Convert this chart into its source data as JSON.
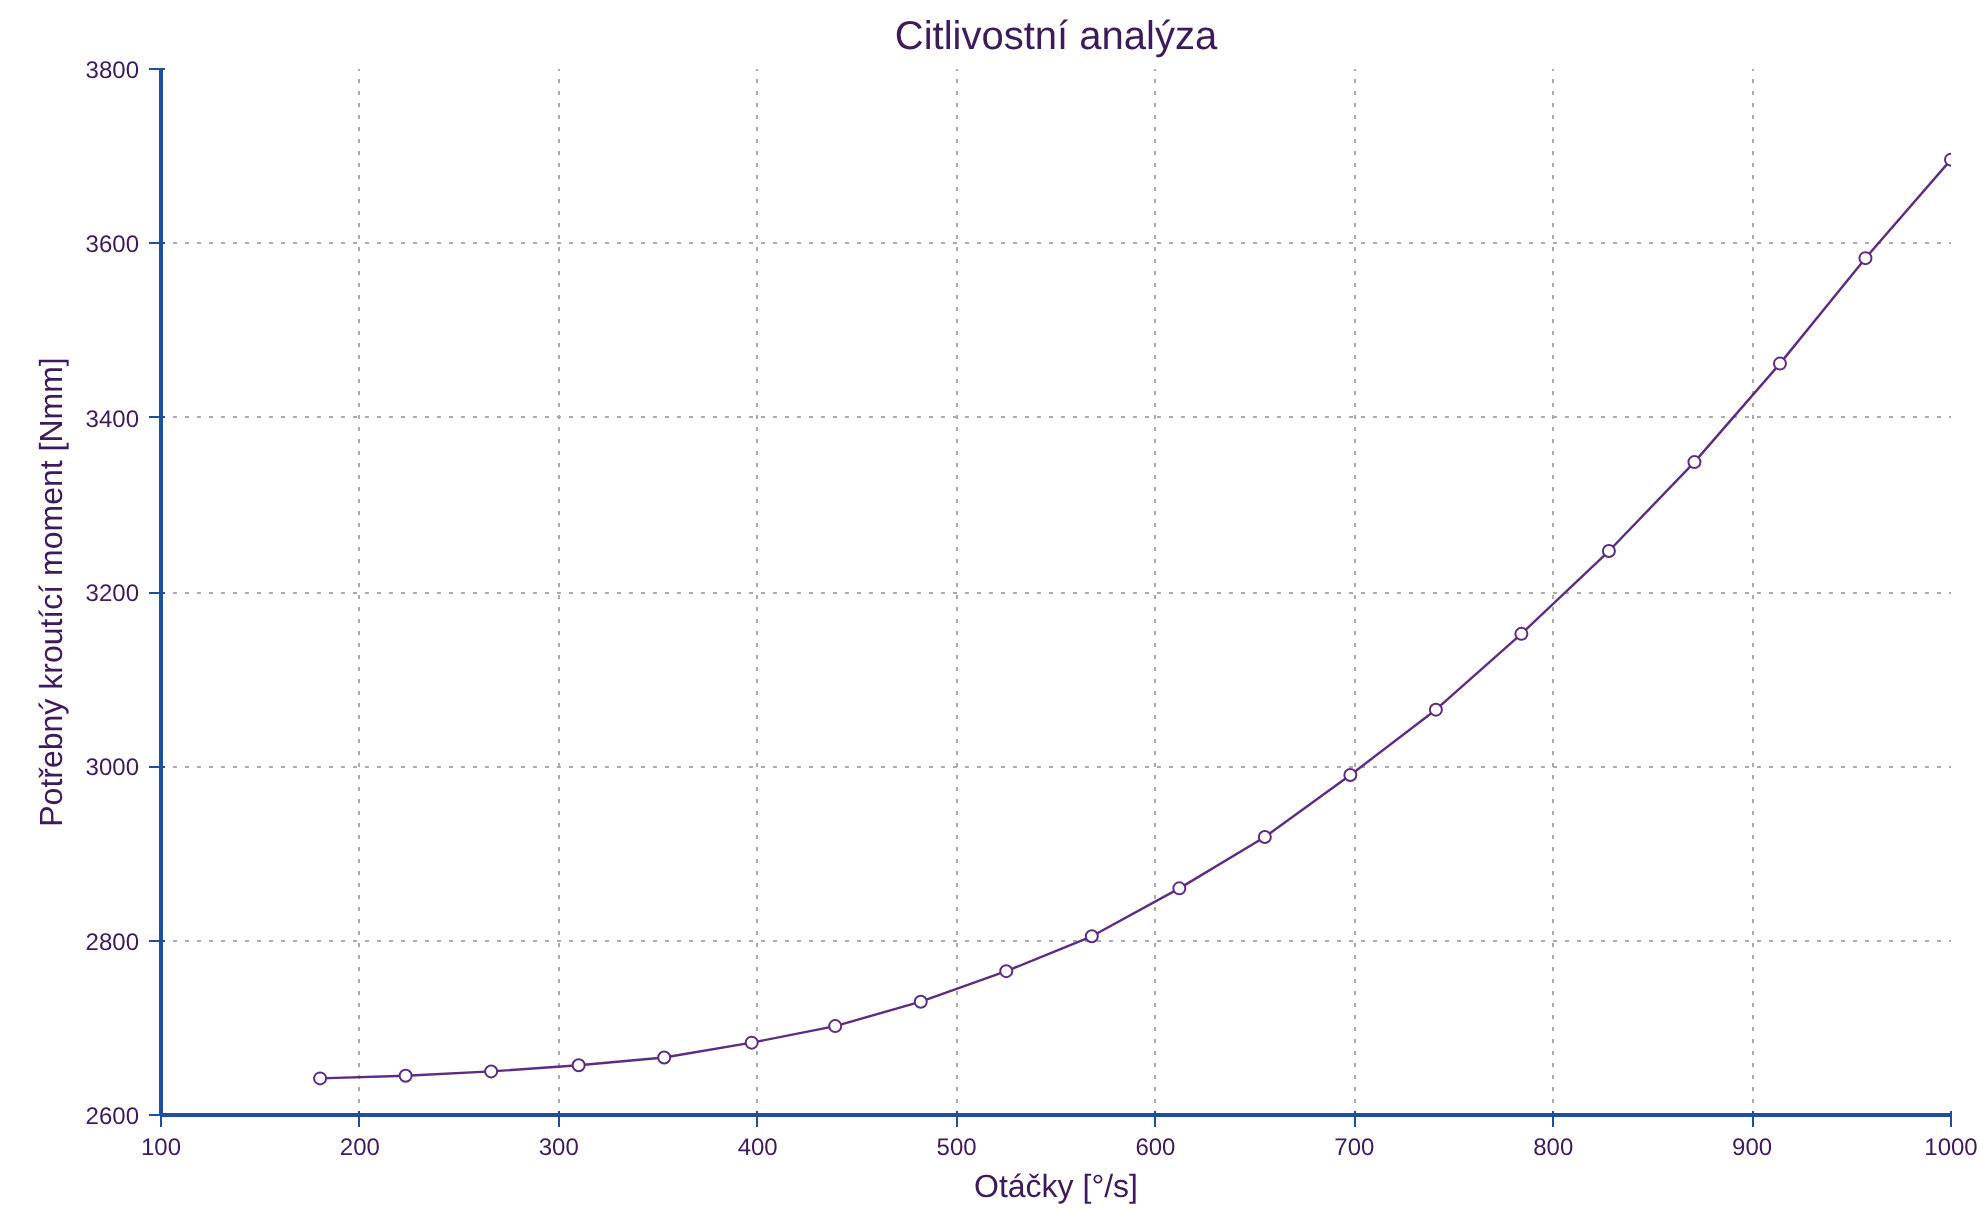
{
  "chart_data": {
    "type": "line",
    "title": "Citlivostní analýza",
    "xlabel": "Otáčky [°/s]",
    "ylabel": "Potřebný kroutící moment [Nmm]",
    "x": [
      180,
      223,
      266,
      310,
      353,
      397,
      439,
      482,
      525,
      568,
      612,
      655,
      698,
      741,
      784,
      828,
      871,
      914,
      957,
      1000
    ],
    "series": [
      {
        "color": "#5b2c83",
        "values": [
          2642,
          2645,
          2650,
          2657,
          2666,
          2683,
          2702,
          2730,
          2765,
          2805,
          2860,
          2919,
          2990,
          3065,
          3152,
          3247,
          3349,
          3462,
          3583,
          3696
        ]
      }
    ],
    "xlim": [
      100,
      1000
    ],
    "ylim": [
      2600,
      3800
    ],
    "xticks": [
      100,
      200,
      300,
      400,
      500,
      600,
      700,
      800,
      900,
      1000
    ],
    "yticks": [
      2600,
      2800,
      3000,
      3200,
      3400,
      3600,
      3800
    ],
    "grid": true,
    "marker": "circle",
    "line_style": "solid"
  }
}
